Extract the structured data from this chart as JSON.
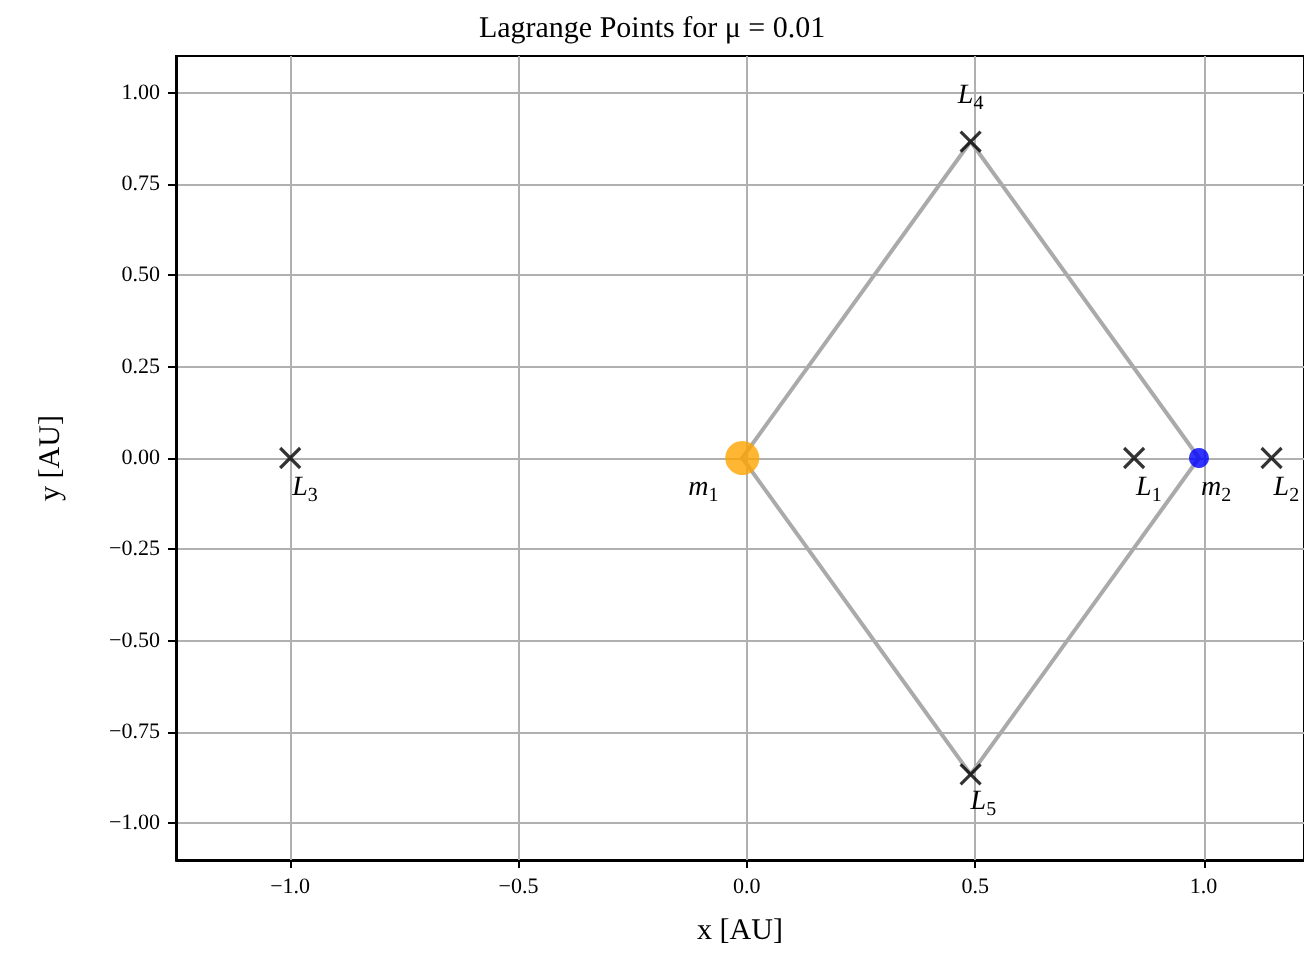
{
  "chart_data": {
    "type": "scatter",
    "title": "Lagrange Points for μ = 0.01",
    "xlabel": "x [AU]",
    "ylabel": "y [AU]",
    "xlim": [
      -1.25,
      1.22
    ],
    "ylim": [
      -1.1,
      1.1
    ],
    "xticks": [
      {
        "value": -1,
        "label": "−1.0"
      },
      {
        "value": -0.5,
        "label": "−0.5"
      },
      {
        "value": 0,
        "label": "0.0"
      },
      {
        "value": 0.5,
        "label": "0.5"
      },
      {
        "value": 1,
        "label": "1.0"
      }
    ],
    "yticks": [
      {
        "value": -1,
        "label": "−1.00"
      },
      {
        "value": -0.75,
        "label": "−0.75"
      },
      {
        "value": -0.5,
        "label": "−0.50"
      },
      {
        "value": -0.25,
        "label": "−0.25"
      },
      {
        "value": 0,
        "label": "0.00"
      },
      {
        "value": 0.25,
        "label": "0.25"
      },
      {
        "value": 0.5,
        "label": "0.50"
      },
      {
        "value": 0.75,
        "label": "0.75"
      },
      {
        "value": 1,
        "label": "1.00"
      }
    ],
    "grid": true,
    "series": [
      {
        "type": "line",
        "color": "#aaaaaa",
        "marker": "none",
        "line_style": "solid",
        "x": [
          -0.01,
          0.49,
          0.99
        ],
        "values": [
          0,
          0.866,
          0
        ]
      },
      {
        "type": "line",
        "color": "#aaaaaa",
        "marker": "none",
        "line_style": "solid",
        "x": [
          -0.01,
          0.49,
          0.99
        ],
        "values": [
          0,
          -0.866,
          0
        ]
      },
      {
        "type": "scatter",
        "color": "#000000",
        "marker": "cross",
        "x": [
          0.848,
          1.149,
          -1.0,
          0.49,
          0.49
        ],
        "values": [
          0,
          0,
          0,
          0.866,
          -0.866
        ]
      },
      {
        "type": "scatter",
        "color": "#ffa500",
        "marker": "circle",
        "x": [
          -0.01
        ],
        "values": [
          0
        ]
      },
      {
        "type": "scatter",
        "color": "#0000ff",
        "marker": "circle",
        "x": [
          0.99
        ],
        "values": [
          0
        ]
      }
    ],
    "annotations": [
      {
        "text": "L$_{1}$",
        "x": 0.848,
        "y": 0
      },
      {
        "text": "L$_{2}$",
        "x": 1.149,
        "y": 0
      },
      {
        "text": "L$_{3}$",
        "x": -1.0,
        "y": 0
      },
      {
        "text": "L$_{4}$",
        "x": 0.49,
        "y": 0.866
      },
      {
        "text": "L$_{5}$",
        "x": 0.49,
        "y": -0.866
      },
      {
        "text": "m$_{1}$",
        "x": -0.01,
        "y": 0
      },
      {
        "text": "m$_{2}$",
        "x": 0.99,
        "y": 0
      }
    ]
  }
}
